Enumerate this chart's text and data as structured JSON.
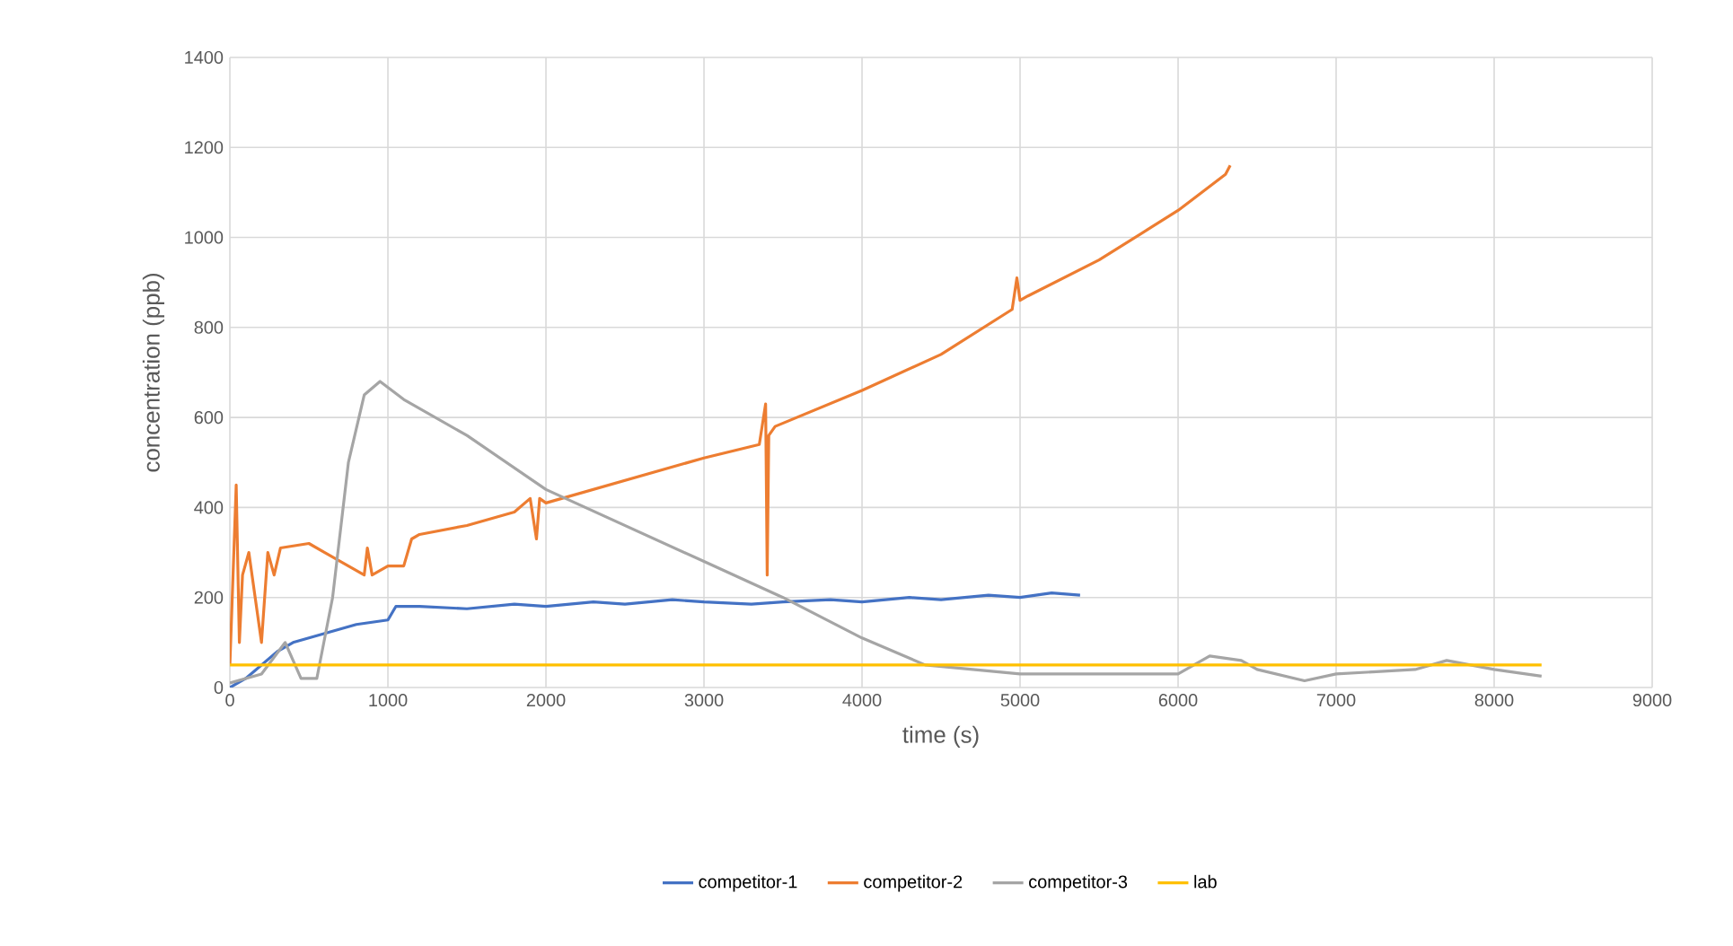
{
  "chart_data": {
    "type": "line",
    "xlabel": "time (s)",
    "ylabel": "concentration (ppb)",
    "xlim": [
      0,
      9000
    ],
    "ylim": [
      0,
      1400
    ],
    "xticks": [
      0,
      1000,
      2000,
      3000,
      4000,
      5000,
      6000,
      7000,
      8000,
      9000
    ],
    "yticks": [
      0,
      200,
      400,
      600,
      800,
      1000,
      1200,
      1400
    ],
    "grid": true,
    "legend": "bottom",
    "marker": "none",
    "series": [
      {
        "name": "competitor-1",
        "color": "#4472c4",
        "x": [
          0,
          100,
          200,
          300,
          400,
          500,
          600,
          700,
          800,
          900,
          1000,
          1050,
          1200,
          1500,
          1800,
          2000,
          2300,
          2500,
          2800,
          3000,
          3300,
          3500,
          3800,
          4000,
          4300,
          4500,
          4800,
          5000,
          5200,
          5380
        ],
        "values": [
          0,
          20,
          50,
          80,
          100,
          110,
          120,
          130,
          140,
          145,
          150,
          180,
          180,
          175,
          185,
          180,
          190,
          185,
          195,
          190,
          185,
          190,
          195,
          190,
          200,
          195,
          205,
          200,
          210,
          205
        ]
      },
      {
        "name": "competitor-2",
        "color": "#ed7d31",
        "x": [
          0,
          40,
          60,
          80,
          120,
          160,
          200,
          240,
          280,
          320,
          500,
          600,
          800,
          850,
          870,
          900,
          1000,
          1100,
          1150,
          1200,
          1500,
          1800,
          1900,
          1940,
          1960,
          2000,
          2500,
          3000,
          3350,
          3390,
          3400,
          3410,
          3450,
          4000,
          4500,
          4950,
          4980,
          5000,
          5050,
          5500,
          6000,
          6300,
          6330
        ],
        "values": [
          50,
          450,
          100,
          250,
          300,
          200,
          100,
          300,
          250,
          310,
          320,
          300,
          260,
          250,
          310,
          250,
          270,
          270,
          330,
          340,
          360,
          390,
          420,
          330,
          420,
          410,
          460,
          510,
          540,
          630,
          250,
          560,
          580,
          660,
          740,
          840,
          910,
          860,
          870,
          950,
          1060,
          1140,
          1160
        ]
      },
      {
        "name": "competitor-3",
        "color": "#a5a5a5",
        "x": [
          0,
          200,
          350,
          450,
          550,
          650,
          750,
          850,
          950,
          1100,
          1500,
          2000,
          2500,
          3000,
          3500,
          4000,
          4400,
          4700,
          5000,
          5500,
          6000,
          6200,
          6400,
          6500,
          6800,
          7000,
          7500,
          7700,
          8000,
          8300
        ],
        "values": [
          10,
          30,
          100,
          20,
          20,
          200,
          500,
          650,
          680,
          640,
          560,
          440,
          360,
          280,
          200,
          110,
          50,
          40,
          30,
          30,
          30,
          70,
          60,
          40,
          15,
          30,
          40,
          60,
          40,
          25
        ]
      },
      {
        "name": "lab",
        "color": "#ffc000",
        "x": [
          0,
          8300
        ],
        "values": [
          50,
          50
        ]
      }
    ]
  }
}
